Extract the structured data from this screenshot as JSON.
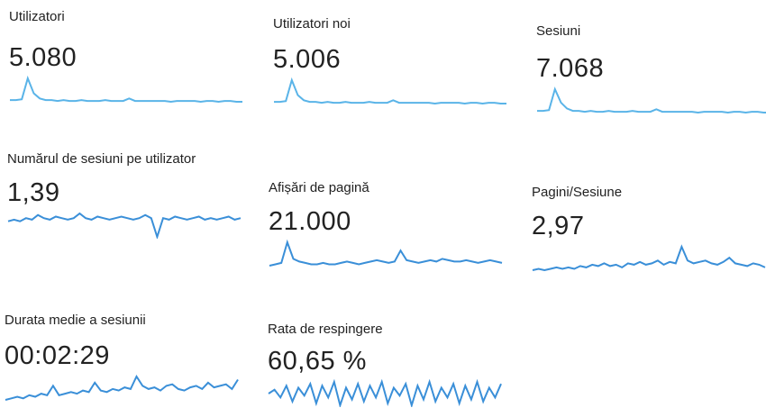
{
  "cards": [
    {
      "label": "Utilizatori",
      "value": "5.080",
      "color": "#5ab4e8",
      "spark": [
        4,
        4,
        5,
        30,
        12,
        6,
        4,
        4,
        3,
        4,
        3,
        3,
        4,
        3,
        3,
        3,
        4,
        3,
        3,
        3,
        6,
        3,
        3,
        3,
        3,
        3,
        3,
        2,
        3,
        3,
        3,
        3,
        2,
        3,
        3,
        2,
        3,
        3,
        2,
        2
      ]
    },
    {
      "label": "Utilizatori noi",
      "value": "5.006",
      "color": "#5ab4e8",
      "spark": [
        4,
        4,
        5,
        30,
        12,
        6,
        4,
        4,
        3,
        4,
        3,
        3,
        4,
        3,
        3,
        3,
        4,
        3,
        3,
        3,
        6,
        3,
        3,
        3,
        3,
        3,
        3,
        2,
        3,
        3,
        3,
        3,
        2,
        3,
        3,
        2,
        3,
        3,
        2,
        2
      ]
    },
    {
      "label": "Sesiuni",
      "value": "7.068",
      "color": "#5ab4e8",
      "spark": [
        4,
        4,
        5,
        30,
        14,
        7,
        4,
        4,
        3,
        4,
        3,
        3,
        4,
        3,
        3,
        3,
        4,
        3,
        3,
        3,
        6,
        3,
        3,
        3,
        3,
        3,
        3,
        2,
        3,
        3,
        3,
        3,
        2,
        3,
        3,
        2,
        3,
        3,
        2,
        2
      ]
    },
    {
      "label": "Numărul de sesiuni pe utilizator",
      "value": "1,39",
      "color": "#3a8fd8",
      "spark": [
        10,
        11,
        10,
        12,
        11,
        14,
        12,
        11,
        13,
        12,
        11,
        12,
        15,
        12,
        11,
        13,
        12,
        11,
        12,
        13,
        12,
        11,
        12,
        14,
        12,
        0,
        12,
        11,
        13,
        12,
        11,
        12,
        13,
        11,
        12,
        11,
        12,
        13,
        11,
        12
      ]
    },
    {
      "label": "Afișări de pagină",
      "value": "21.000",
      "color": "#3a8fd8",
      "spark": [
        5,
        6,
        7,
        22,
        10,
        8,
        7,
        6,
        6,
        7,
        6,
        6,
        7,
        8,
        7,
        6,
        7,
        8,
        9,
        8,
        7,
        8,
        16,
        9,
        8,
        7,
        8,
        9,
        8,
        10,
        9,
        8,
        8,
        9,
        8,
        7,
        8,
        9,
        8,
        7
      ]
    },
    {
      "label": "Pagini/Sesiune",
      "value": "2,97",
      "color": "#3a8fd8",
      "spark": [
        5,
        6,
        5,
        6,
        7,
        6,
        7,
        6,
        8,
        7,
        9,
        8,
        10,
        8,
        9,
        7,
        10,
        9,
        11,
        9,
        10,
        12,
        9,
        11,
        10,
        22,
        12,
        10,
        11,
        12,
        10,
        9,
        11,
        14,
        10,
        9,
        8,
        10,
        9,
        7
      ]
    },
    {
      "label": "Durata medie a sesiunii",
      "value": "00:02:29",
      "color": "#3a8fd8",
      "spark": [
        3,
        4,
        5,
        4,
        6,
        5,
        7,
        6,
        12,
        6,
        7,
        8,
        7,
        9,
        8,
        14,
        9,
        8,
        10,
        9,
        11,
        10,
        18,
        12,
        10,
        11,
        9,
        12,
        13,
        10,
        9,
        11,
        12,
        10,
        14,
        11,
        12,
        13,
        10,
        16
      ]
    },
    {
      "label": "Rata de respingere",
      "value": "60,65 %",
      "color": "#3a8fd8",
      "spark": [
        14,
        16,
        12,
        18,
        10,
        17,
        13,
        19,
        9,
        18,
        12,
        20,
        8,
        17,
        11,
        19,
        10,
        18,
        12,
        20,
        9,
        17,
        13,
        19,
        8,
        18,
        11,
        20,
        10,
        17,
        12,
        19,
        9,
        18,
        11,
        20,
        10,
        17,
        12,
        19
      ]
    }
  ]
}
